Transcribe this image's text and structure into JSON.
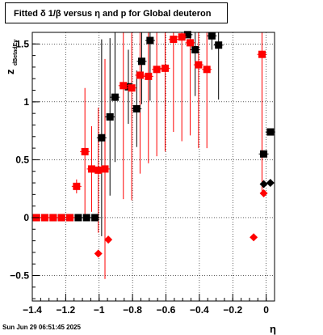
{
  "title": "Fitted δ 1/β versus η and p for Global deuteron",
  "footer": "Sun Jun 29 06:51:45 2025",
  "chart_data": {
    "type": "scatter",
    "title": "Fitted δ 1/β versus η and p for Global deuteron",
    "xlabel": "η",
    "ylabel": "z",
    "ylabel_sub": "dBetadEv",
    "xlim": [
      -1.4,
      0.05
    ],
    "ylim": [
      -0.72,
      1.6
    ],
    "xticks": [
      -1.4,
      -1.2,
      -1.0,
      -0.8,
      -0.6,
      -0.4,
      -0.2,
      0.0
    ],
    "xtick_labels": [
      "−1.4",
      "−1.2",
      "−1",
      "−0.8",
      "−0.6",
      "−0.4",
      "−0.2",
      "0"
    ],
    "yticks": [
      -0.5,
      0,
      0.5,
      1,
      1.5
    ],
    "ytick_labels": [
      "−0.5",
      "0",
      "0.5",
      "1",
      "1.5"
    ],
    "grid": true,
    "series": [
      {
        "color": "#000000",
        "points": [
          {
            "x": -1.375,
            "y": 0,
            "err": 0
          },
          {
            "x": -1.325,
            "y": 0,
            "err": 0
          },
          {
            "x": -1.275,
            "y": 0,
            "err": 0
          },
          {
            "x": -1.225,
            "y": 0,
            "err": 0
          },
          {
            "x": -1.175,
            "y": 0,
            "err": 0
          },
          {
            "x": -1.125,
            "y": 0.0,
            "err": 0
          },
          {
            "x": -1.075,
            "y": 0.0,
            "err": 0
          },
          {
            "x": -1.025,
            "y": 0.0,
            "err": 0
          },
          {
            "x": -0.985,
            "y": 0.69,
            "err": 0.85
          },
          {
            "x": -0.935,
            "y": 0.87,
            "err": 0.68
          },
          {
            "x": -0.905,
            "y": 1.04,
            "err": 0.56
          },
          {
            "x": -0.825,
            "y": 1.13,
            "err": 0.32
          },
          {
            "x": -0.775,
            "y": 0.94,
            "err": 0.33
          },
          {
            "x": -0.745,
            "y": 1.35,
            "err": 0.37
          },
          {
            "x": -0.695,
            "y": 1.53,
            "err": 0.52
          },
          {
            "x": -0.47,
            "y": 1.58,
            "err": 0.02
          },
          {
            "x": -0.425,
            "y": 1.45,
            "err": 0.4
          },
          {
            "x": -0.325,
            "y": 1.57,
            "err": 0.12
          },
          {
            "x": -0.285,
            "y": 1.49,
            "err": 0.47
          },
          {
            "x": -0.015,
            "y": 0.55,
            "err": 0.0
          },
          {
            "x": -0.015,
            "y": 0.29,
            "err": 0.0
          },
          {
            "x": 0.025,
            "y": 0.74,
            "err": 0.0
          },
          {
            "x": 0.025,
            "y": 0.3,
            "err": 0.0
          }
        ]
      },
      {
        "color": "#ff0000",
        "points": [
          {
            "x": -1.375,
            "y": 0,
            "err": 0
          },
          {
            "x": -1.325,
            "y": 0,
            "err": 0
          },
          {
            "x": -1.275,
            "y": 0,
            "err": 0
          },
          {
            "x": -1.225,
            "y": 0,
            "err": 0
          },
          {
            "x": -1.175,
            "y": 0,
            "err": 0
          },
          {
            "x": -1.135,
            "y": 0.27,
            "err": 0.06
          },
          {
            "x": -1.085,
            "y": 0.57,
            "err": 0.55
          },
          {
            "x": -1.045,
            "y": 0.42,
            "err": 0.37
          },
          {
            "x": -1.005,
            "y": 0.41,
            "err": 0.54
          },
          {
            "x": -0.965,
            "y": 0.42,
            "err": 0.95
          },
          {
            "x": -0.855,
            "y": 1.14,
            "err": 0.98
          },
          {
            "x": -0.805,
            "y": 1.12,
            "err": 0.97
          },
          {
            "x": -0.755,
            "y": 1.23,
            "err": 0.85
          },
          {
            "x": -0.705,
            "y": 1.22,
            "err": 0.75
          },
          {
            "x": -0.655,
            "y": 1.28,
            "err": 0.75
          },
          {
            "x": -0.605,
            "y": 1.29,
            "err": 0.72
          },
          {
            "x": -0.555,
            "y": 1.54,
            "err": 0.8
          },
          {
            "x": -0.505,
            "y": 1.56,
            "err": 0.9
          },
          {
            "x": -0.455,
            "y": 1.51,
            "err": 0.8
          },
          {
            "x": -0.405,
            "y": 1.32,
            "err": 0.72
          },
          {
            "x": -0.355,
            "y": 1.28,
            "err": 0.68
          },
          {
            "x": -0.025,
            "y": 1.41,
            "err": 1.2
          },
          {
            "x": -1.005,
            "y": -0.31,
            "err": 0
          },
          {
            "x": -0.945,
            "y": -0.19,
            "err": 0
          },
          {
            "x": -0.075,
            "y": -0.17,
            "err": 0
          },
          {
            "x": -0.015,
            "y": 0.21,
            "err": 0
          }
        ]
      }
    ]
  }
}
